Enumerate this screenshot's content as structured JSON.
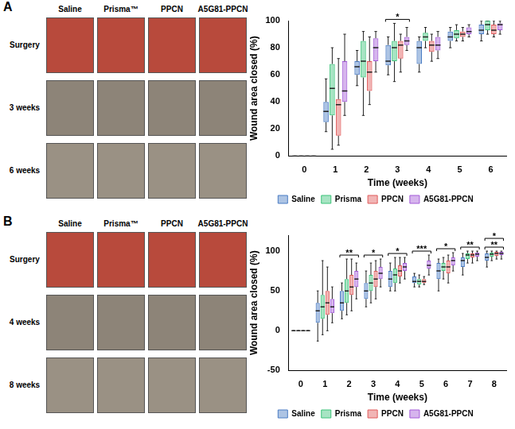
{
  "panels": [
    {
      "label": "A",
      "photo_columns": [
        "Saline",
        "Prisma™",
        "PPCN",
        "A5G81-PPCN"
      ],
      "photo_rows": [
        "Surgery",
        "3 weeks",
        "6 weeks"
      ]
    },
    {
      "label": "B",
      "photo_columns": [
        "Saline",
        "Prisma™",
        "PPCN",
        "A5G81-PPCN"
      ],
      "photo_rows": [
        "Surgery",
        "4 weeks",
        "8 weeks"
      ]
    }
  ],
  "chart_data": [
    {
      "type": "box",
      "x_label": "Time (weeks)",
      "y_label": "Wound area closed (%)",
      "x": [
        0,
        1,
        2,
        3,
        4,
        5,
        6
      ],
      "ylim": [
        0,
        100
      ],
      "yticks": [
        0,
        20,
        40,
        60,
        80,
        100
      ],
      "grid": false,
      "legend": "bottom",
      "series": [
        {
          "name": "Saline",
          "color": "#4a7cc4",
          "values": [
            0,
            33,
            66,
            70,
            80,
            88,
            93
          ],
          "min": [
            0,
            18,
            52,
            60,
            62,
            80,
            85
          ],
          "q1": [
            0,
            25,
            60,
            67,
            68,
            85,
            90
          ],
          "q3": [
            0,
            40,
            70,
            82,
            85,
            92,
            97
          ],
          "max": [
            0,
            57,
            78,
            88,
            88,
            95,
            100
          ]
        },
        {
          "name": "Prisma",
          "color": "#3cc37a",
          "values": [
            0,
            50,
            70,
            80,
            88,
            90,
            97
          ],
          "min": [
            0,
            5,
            30,
            55,
            80,
            85,
            90
          ],
          "q1": [
            0,
            30,
            58,
            70,
            85,
            87,
            93
          ],
          "q3": [
            0,
            68,
            85,
            85,
            91,
            93,
            100
          ],
          "max": [
            0,
            80,
            92,
            98,
            95,
            97,
            100
          ]
        },
        {
          "name": "PPCN",
          "color": "#e05a5a",
          "values": [
            0,
            38,
            62,
            82,
            82,
            90,
            93
          ],
          "min": [
            0,
            8,
            38,
            62,
            70,
            85,
            88
          ],
          "q1": [
            0,
            15,
            48,
            72,
            77,
            88,
            90
          ],
          "q3": [
            0,
            42,
            70,
            85,
            85,
            92,
            97
          ],
          "max": [
            0,
            72,
            88,
            90,
            90,
            95,
            100
          ]
        },
        {
          "name": "A5G81-PPCN",
          "color": "#a35bd8",
          "values": [
            0,
            48,
            80,
            85,
            82,
            92,
            97
          ],
          "min": [
            0,
            30,
            62,
            78,
            72,
            88,
            90
          ],
          "q1": [
            0,
            40,
            70,
            82,
            78,
            90,
            93
          ],
          "q3": [
            0,
            70,
            87,
            88,
            88,
            95,
            98
          ],
          "max": [
            0,
            90,
            92,
            95,
            92,
            97,
            100
          ]
        }
      ],
      "annotations": [
        {
          "x": 3,
          "text": "*"
        }
      ]
    },
    {
      "type": "box",
      "x_label": "Time (weeks)",
      "y_label": "Wound area closed (%)",
      "x": [
        0,
        1,
        2,
        3,
        4,
        5,
        6,
        7,
        8
      ],
      "ylim": [
        -50,
        120
      ],
      "yticks": [
        -50,
        0,
        50,
        100
      ],
      "grid": false,
      "legend": "bottom",
      "series": [
        {
          "name": "Saline",
          "color": "#4a7cc4",
          "values": [
            0,
            25,
            35,
            50,
            65,
            62,
            75,
            88,
            92
          ],
          "min": [
            0,
            -13,
            15,
            30,
            50,
            55,
            50,
            70,
            80
          ],
          "q1": [
            0,
            10,
            25,
            40,
            55,
            60,
            65,
            80,
            88
          ],
          "q3": [
            0,
            35,
            50,
            60,
            75,
            68,
            85,
            92,
            97
          ],
          "max": [
            0,
            50,
            60,
            75,
            85,
            72,
            90,
            97,
            100
          ]
        },
        {
          "name": "Prisma",
          "color": "#3cc37a",
          "values": [
            0,
            30,
            50,
            60,
            70,
            62,
            80,
            95,
            96
          ],
          "min": [
            0,
            -5,
            20,
            35,
            50,
            55,
            65,
            85,
            88
          ],
          "q1": [
            0,
            15,
            35,
            50,
            60,
            58,
            75,
            90,
            93
          ],
          "q3": [
            0,
            45,
            65,
            70,
            78,
            65,
            85,
            97,
            98
          ],
          "max": [
            0,
            88,
            90,
            85,
            92,
            70,
            92,
            100,
            100
          ]
        },
        {
          "name": "PPCN",
          "color": "#e05a5a",
          "values": [
            0,
            35,
            55,
            65,
            75,
            62,
            80,
            95,
            97
          ],
          "min": [
            0,
            0,
            25,
            40,
            60,
            58,
            60,
            85,
            90
          ],
          "q1": [
            0,
            20,
            45,
            55,
            68,
            60,
            72,
            92,
            94
          ],
          "q3": [
            0,
            50,
            70,
            75,
            82,
            65,
            88,
            97,
            99
          ],
          "max": [
            0,
            80,
            90,
            88,
            92,
            68,
            95,
            100,
            100
          ]
        },
        {
          "name": "A5G81-PPCN",
          "color": "#a35bd8",
          "values": [
            0,
            30,
            65,
            72,
            80,
            82,
            88,
            96,
            97
          ],
          "min": [
            0,
            10,
            40,
            55,
            65,
            70,
            75,
            88,
            90
          ],
          "q1": [
            0,
            22,
            55,
            65,
            75,
            78,
            82,
            93,
            95
          ],
          "q3": [
            0,
            40,
            75,
            80,
            85,
            88,
            92,
            98,
            99
          ],
          "max": [
            0,
            55,
            85,
            90,
            92,
            95,
            98,
            100,
            100
          ]
        }
      ],
      "annotations": [
        {
          "x": 2,
          "text": "**"
        },
        {
          "x": 3,
          "text": "*"
        },
        {
          "x": 4,
          "text": "*"
        },
        {
          "x": 5,
          "text": "***"
        },
        {
          "x": 6,
          "text": "*"
        },
        {
          "x": 7,
          "text": "**"
        },
        {
          "x": 8,
          "text": "**"
        },
        {
          "x": 8,
          "text": "*"
        }
      ]
    }
  ]
}
